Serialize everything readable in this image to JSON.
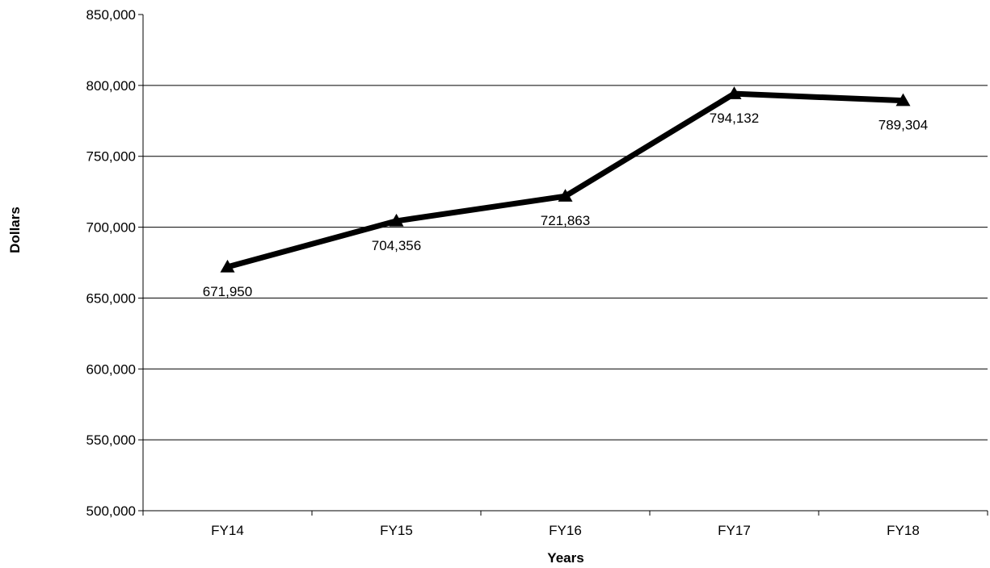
{
  "chart_data": {
    "type": "line",
    "categories": [
      "FY14",
      "FY15",
      "FY16",
      "FY17",
      "FY18"
    ],
    "series": [
      {
        "values": [
          671950,
          704356,
          721863,
          794132,
          789304
        ]
      }
    ],
    "data_labels": [
      "671,950",
      "704,356",
      "721,863",
      "794,132",
      "789,304"
    ],
    "xlabel": "Years",
    "ylabel": "Dollars",
    "ylim": [
      500000,
      850000
    ],
    "yticks": [
      500000,
      550000,
      600000,
      650000,
      700000,
      750000,
      800000,
      850000
    ],
    "ytick_labels": [
      "500,000",
      "550,000",
      "600,000",
      "650,000",
      "700,000",
      "750,000",
      "800,000",
      "850,000"
    ],
    "grid": "horizontal",
    "marker": "triangle",
    "line_color": "#000000"
  }
}
